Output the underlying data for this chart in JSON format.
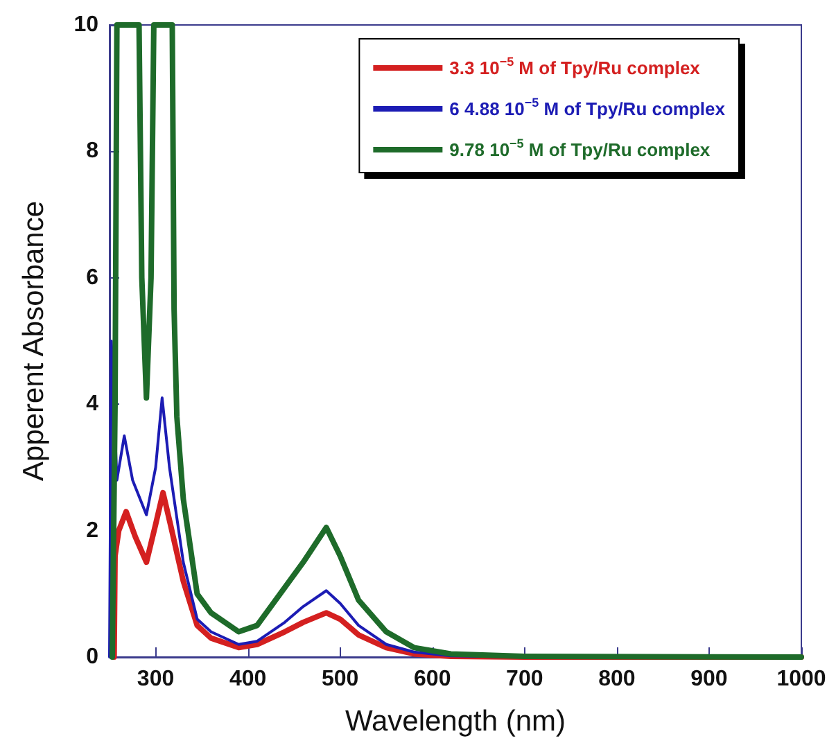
{
  "chart_data": {
    "type": "line",
    "xlabel": "Wavelength (nm)",
    "ylabel": "Apperent Absorbance",
    "xlim": [
      250,
      1000
    ],
    "xticks": [
      300,
      400,
      500,
      600,
      700,
      800,
      900,
      1000
    ],
    "ylim": [
      0,
      10
    ],
    "yticks": [
      0,
      2,
      4,
      6,
      8,
      10
    ],
    "grid": false,
    "legend": "top right",
    "marker": "none",
    "line_style": "solid",
    "series": [
      {
        "name": "3.3 10$^{−5}$ M of Tpy/Ru complex",
        "color": "#d42020",
        "x": [
          255,
          256,
          260,
          268,
          278,
          290,
          300,
          308,
          316,
          330,
          345,
          360,
          390,
          410,
          440,
          460,
          485,
          500,
          520,
          550,
          580,
          620,
          700,
          1000
        ],
        "values": [
          0,
          1.6,
          2.0,
          2.3,
          1.9,
          1.5,
          2.1,
          2.6,
          2.1,
          1.2,
          0.5,
          0.3,
          0.15,
          0.2,
          0.4,
          0.55,
          0.7,
          0.6,
          0.35,
          0.15,
          0.05,
          0.01,
          0,
          0
        ]
      },
      {
        "name": "6 4.88 10$^{−5}$ M of Tpy/Ru complex",
        "color": "#1c1cb4",
        "x": [
          250,
          252,
          258,
          266,
          275,
          290,
          300,
          307,
          315,
          330,
          345,
          360,
          390,
          410,
          440,
          460,
          485,
          500,
          520,
          550,
          580,
          620,
          700,
          1000
        ],
        "values": [
          0,
          5.0,
          2.8,
          3.5,
          2.8,
          2.25,
          3.0,
          4.1,
          3.0,
          1.5,
          0.6,
          0.4,
          0.2,
          0.25,
          0.55,
          0.8,
          1.05,
          0.85,
          0.5,
          0.2,
          0.08,
          0.02,
          0,
          0
        ]
      },
      {
        "name": "9.78 10$^{−5}$ M of Tpy/Ru complex",
        "color": "#1e6b2a",
        "x": [
          253,
          256,
          258,
          282,
          285,
          290,
          295,
          298,
          318,
          320,
          323,
          330,
          345,
          360,
          390,
          410,
          440,
          460,
          485,
          500,
          520,
          550,
          580,
          620,
          700,
          1000
        ],
        "values": [
          0,
          4,
          10,
          10,
          6,
          4.1,
          6,
          10,
          10,
          5.5,
          3.8,
          2.5,
          1.0,
          0.7,
          0.4,
          0.5,
          1.1,
          1.5,
          2.05,
          1.6,
          0.9,
          0.4,
          0.15,
          0.05,
          0.01,
          0
        ]
      }
    ]
  }
}
